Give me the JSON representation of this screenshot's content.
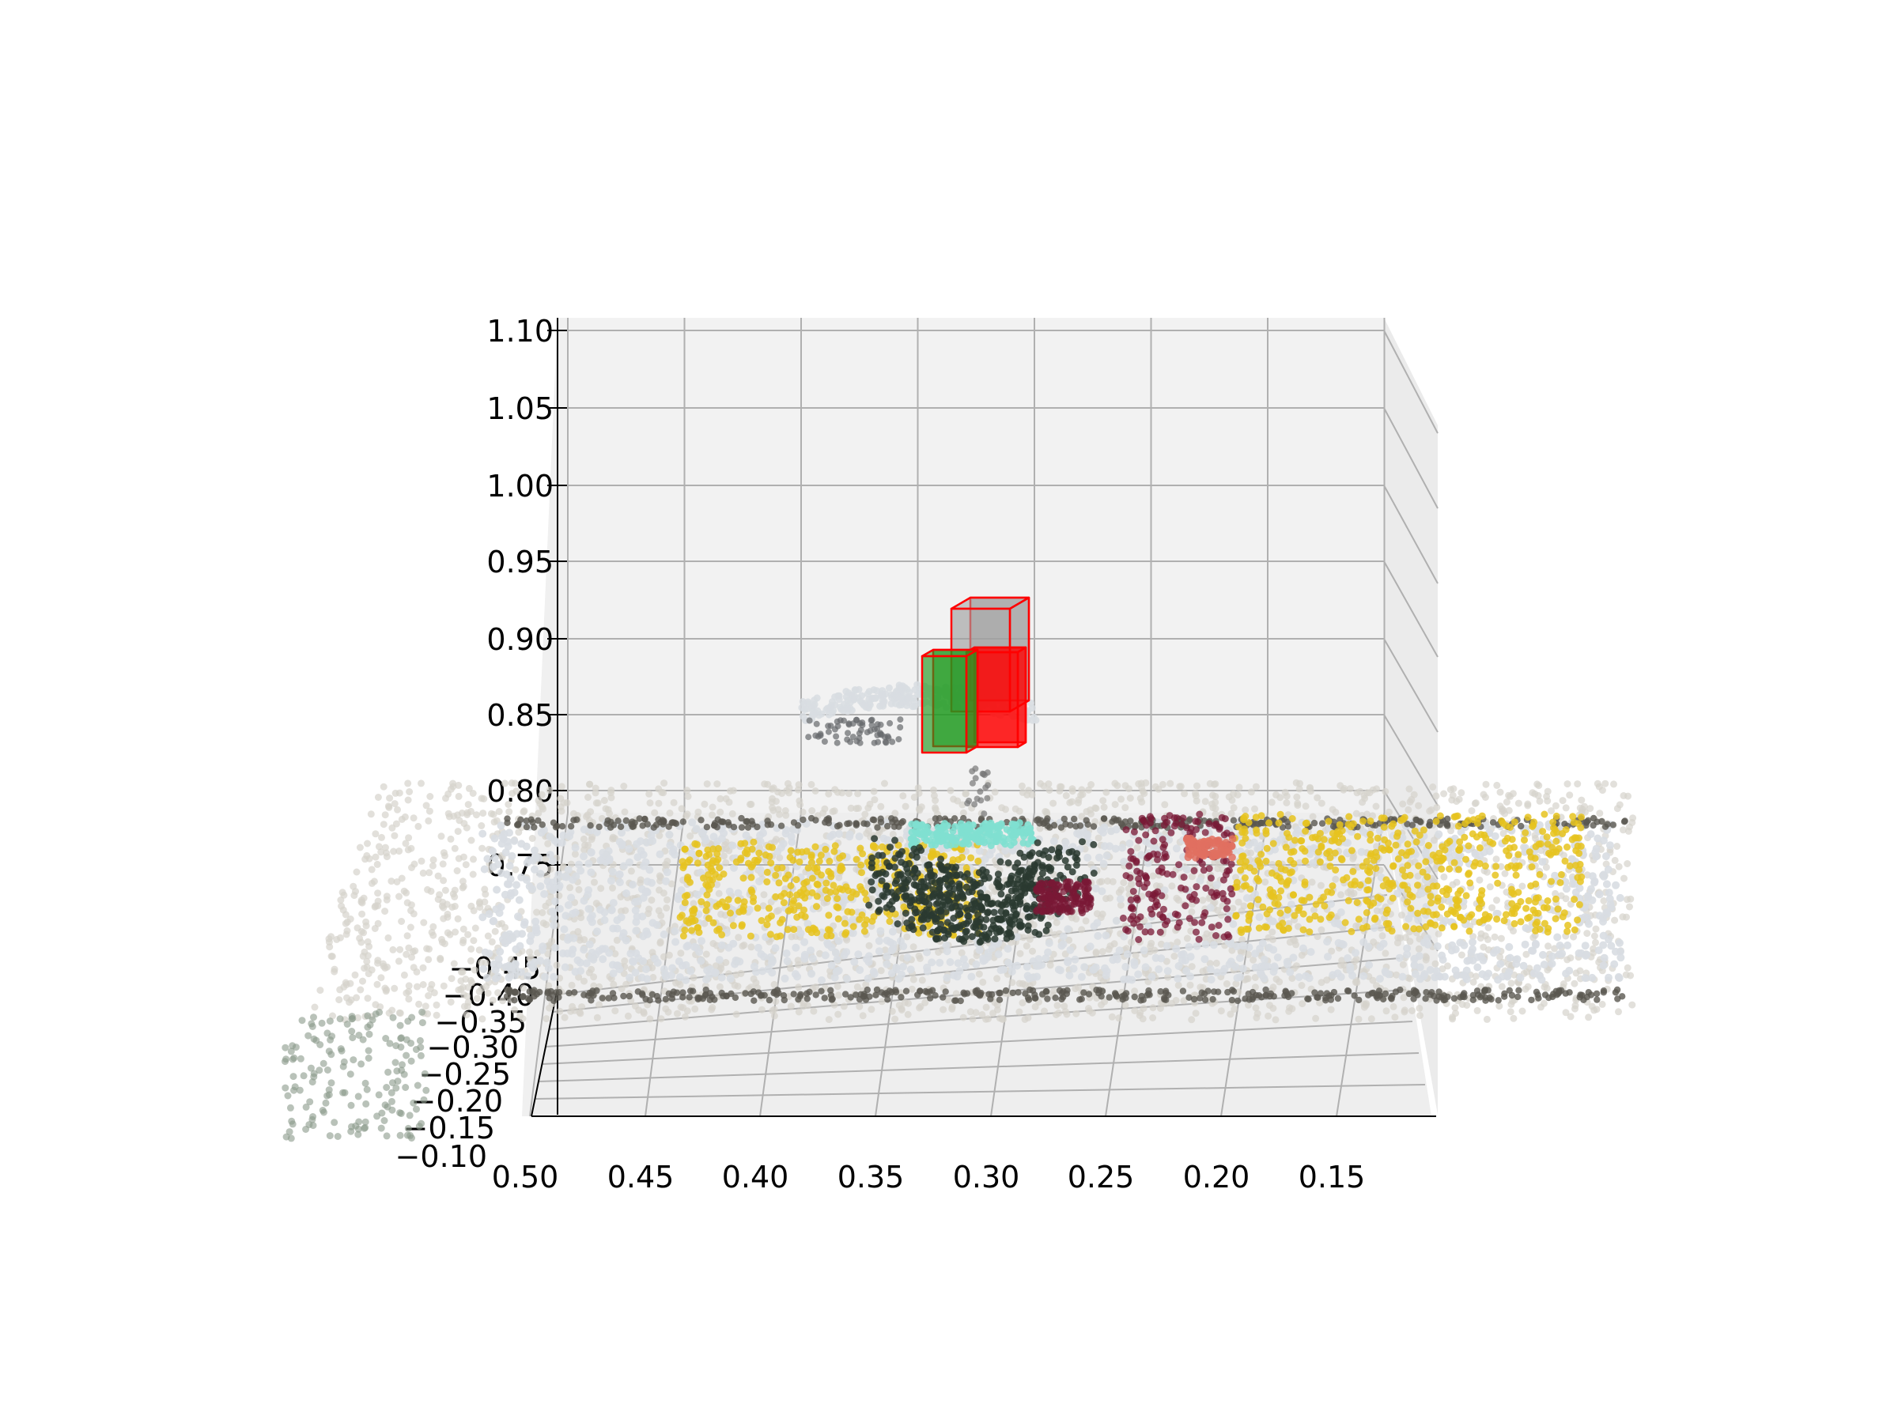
{
  "chart_data": {
    "type": "scatter",
    "projection": "3d",
    "title": "",
    "xlabel": "",
    "ylabel": "",
    "zlabel": "",
    "xlim": [
      0.5,
      0.12
    ],
    "ylim": [
      -0.1,
      -0.45
    ],
    "zlim": [
      0.72,
      1.1
    ],
    "x_ticks": [
      "0.50",
      "0.45",
      "0.40",
      "0.35",
      "0.30",
      "0.25",
      "0.20",
      "0.15"
    ],
    "y_ticks": [
      "−0.10",
      "−0.15",
      "−0.20",
      "−0.25",
      "−0.30",
      "−0.35",
      "−0.40",
      "−0.45"
    ],
    "z_ticks": [
      "1.10",
      "1.05",
      "1.00",
      "0.95",
      "0.90",
      "0.85",
      "0.80",
      "0.75"
    ],
    "grid": true,
    "legend": "none",
    "colors": {
      "pane": "#f2f2f2",
      "grid": "#b0b0b0",
      "box_red_face": "#ff0000",
      "box_red_edge": "#ff0000",
      "box_gray_face": "#a0a0a0",
      "box_green_face": "#1f9a1f",
      "points_table": "#d6d3cc",
      "points_tray": "#d8dde2",
      "points_tray_edge": "#5a5850",
      "points_yellow": "#e6c31e",
      "points_dark_green": "#2a3a30",
      "points_cyan": "#7fe0d0",
      "points_maroon": "#7a1836",
      "points_salmon": "#e07060"
    },
    "boxes": [
      {
        "name": "gray box",
        "face": "#a0a0a0",
        "edge": "#ff0000"
      },
      {
        "name": "red box",
        "face": "#ff0000",
        "edge": "#ff0000"
      },
      {
        "name": "green box",
        "face": "#1f9a1f",
        "edge": "#ff0000"
      }
    ],
    "point_clouds": [
      {
        "name": "table surface",
        "color": "#d6d3cc"
      },
      {
        "name": "tray",
        "color": "#d8dde2"
      },
      {
        "name": "yellow objects",
        "color": "#e6c31e"
      },
      {
        "name": "dark green object",
        "color": "#2a3a30"
      },
      {
        "name": "cyan object",
        "color": "#7fe0d0"
      },
      {
        "name": "maroon objects",
        "color": "#7a1836"
      },
      {
        "name": "grasped object",
        "color": "#d8dde2"
      }
    ]
  }
}
